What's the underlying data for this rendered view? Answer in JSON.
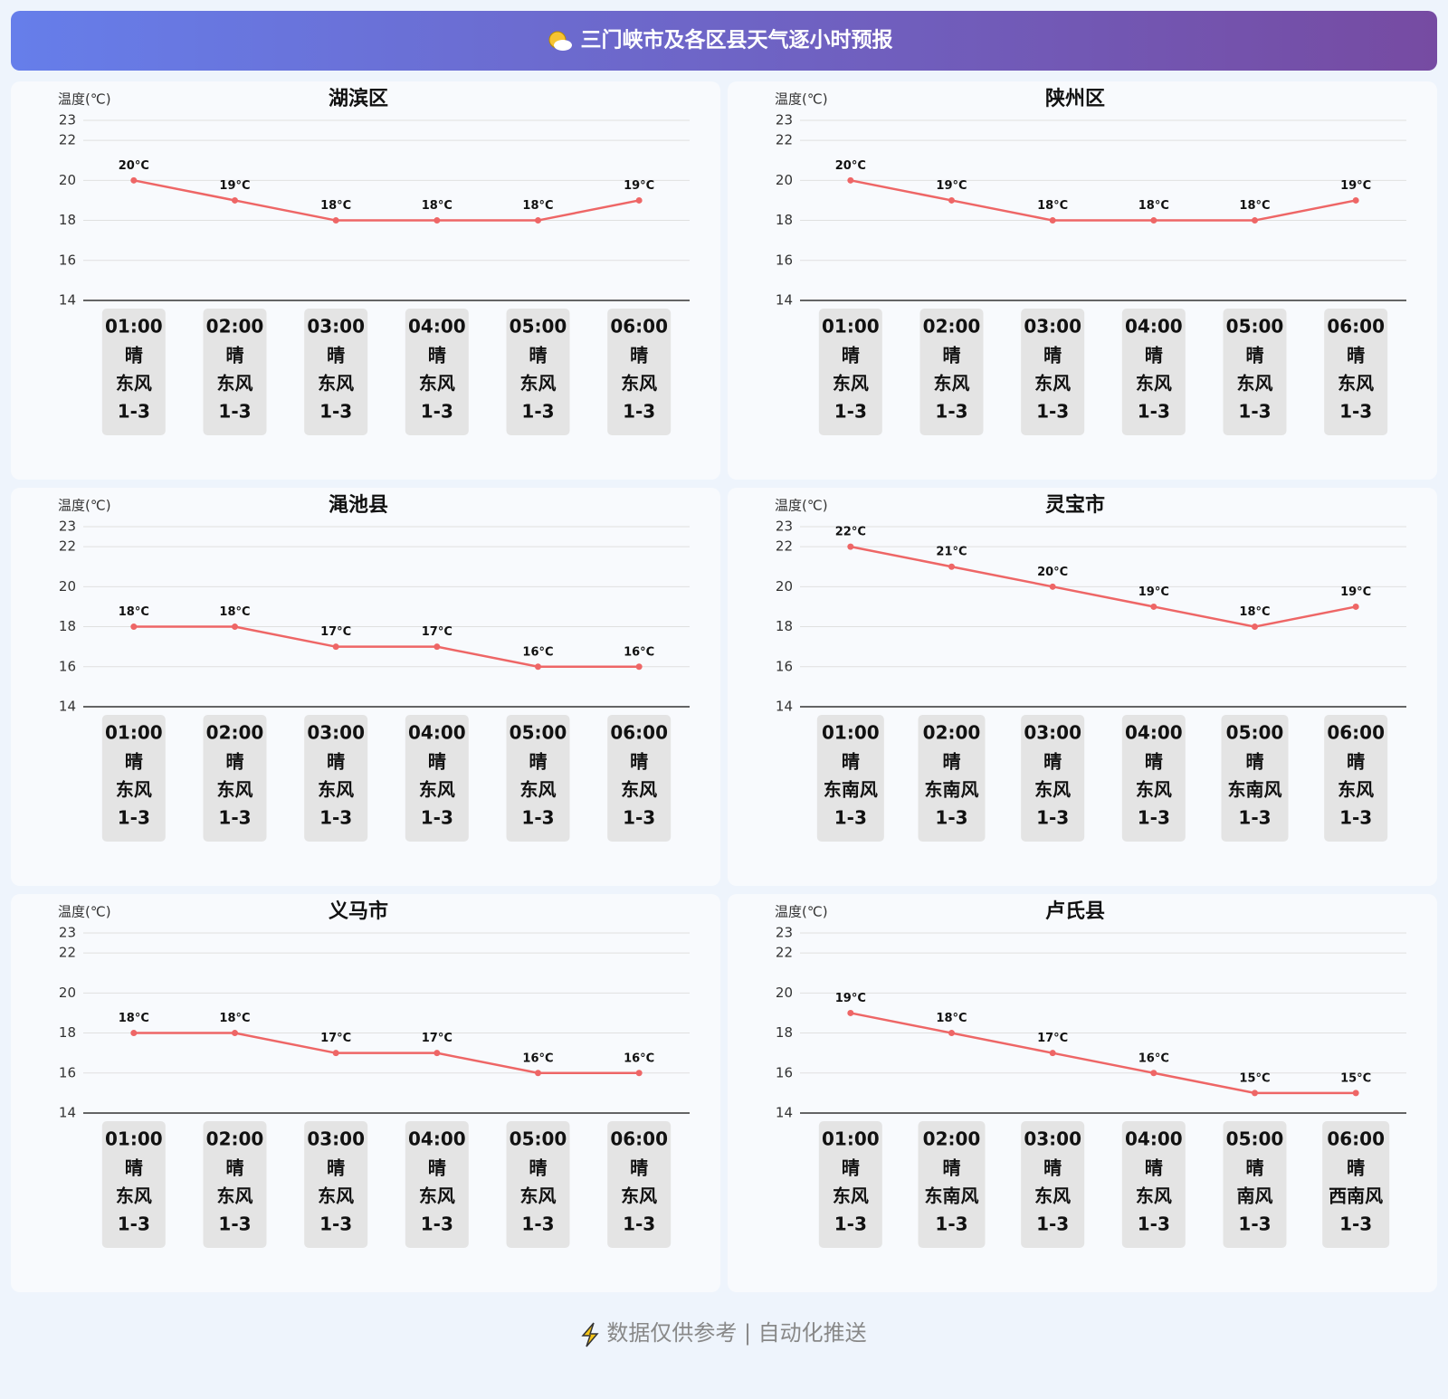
{
  "header": {
    "title": "三门峡市及各区县天气逐小时预报"
  },
  "footer": {
    "text": "数据仅供参考 | 自动化推送"
  },
  "chart_data": [
    {
      "type": "line",
      "title": "湖滨区",
      "ylabel": "温度(℃)",
      "color": "#ee6666",
      "grid": true,
      "categories": [
        "01:00",
        "02:00",
        "03:00",
        "04:00",
        "05:00",
        "06:00"
      ],
      "values": [
        20,
        19,
        18,
        18,
        18,
        19
      ],
      "value_labels": [
        "20°C",
        "19°C",
        "18°C",
        "18°C",
        "18°C",
        "19°C"
      ],
      "weather": [
        "晴",
        "晴",
        "晴",
        "晴",
        "晴",
        "晴"
      ],
      "wind": [
        "东风",
        "东风",
        "东风",
        "东风",
        "东风",
        "东风"
      ],
      "wind_level": [
        "1-3",
        "1-3",
        "1-3",
        "1-3",
        "1-3",
        "1-3"
      ],
      "ylim": [
        14,
        23
      ],
      "yticks": [
        14,
        16,
        18,
        20,
        22,
        23
      ]
    },
    {
      "type": "line",
      "title": "陕州区",
      "ylabel": "温度(℃)",
      "color": "#ee6666",
      "grid": true,
      "categories": [
        "01:00",
        "02:00",
        "03:00",
        "04:00",
        "05:00",
        "06:00"
      ],
      "values": [
        20,
        19,
        18,
        18,
        18,
        19
      ],
      "value_labels": [
        "20°C",
        "19°C",
        "18°C",
        "18°C",
        "18°C",
        "19°C"
      ],
      "weather": [
        "晴",
        "晴",
        "晴",
        "晴",
        "晴",
        "晴"
      ],
      "wind": [
        "东风",
        "东风",
        "东风",
        "东风",
        "东风",
        "东风"
      ],
      "wind_level": [
        "1-3",
        "1-3",
        "1-3",
        "1-3",
        "1-3",
        "1-3"
      ],
      "ylim": [
        14,
        23
      ],
      "yticks": [
        14,
        16,
        18,
        20,
        22,
        23
      ]
    },
    {
      "type": "line",
      "title": "渑池县",
      "ylabel": "温度(℃)",
      "color": "#ee6666",
      "grid": true,
      "categories": [
        "01:00",
        "02:00",
        "03:00",
        "04:00",
        "05:00",
        "06:00"
      ],
      "values": [
        18,
        18,
        17,
        17,
        16,
        16
      ],
      "value_labels": [
        "18°C",
        "18°C",
        "17°C",
        "17°C",
        "16°C",
        "16°C"
      ],
      "weather": [
        "晴",
        "晴",
        "晴",
        "晴",
        "晴",
        "晴"
      ],
      "wind": [
        "东风",
        "东风",
        "东风",
        "东风",
        "东风",
        "东风"
      ],
      "wind_level": [
        "1-3",
        "1-3",
        "1-3",
        "1-3",
        "1-3",
        "1-3"
      ],
      "ylim": [
        14,
        23
      ],
      "yticks": [
        14,
        16,
        18,
        20,
        22,
        23
      ]
    },
    {
      "type": "line",
      "title": "灵宝市",
      "ylabel": "温度(℃)",
      "color": "#ee6666",
      "grid": true,
      "categories": [
        "01:00",
        "02:00",
        "03:00",
        "04:00",
        "05:00",
        "06:00"
      ],
      "values": [
        22,
        21,
        20,
        19,
        18,
        19
      ],
      "value_labels": [
        "22°C",
        "21°C",
        "20°C",
        "19°C",
        "18°C",
        "19°C"
      ],
      "weather": [
        "晴",
        "晴",
        "晴",
        "晴",
        "晴",
        "晴"
      ],
      "wind": [
        "东南风",
        "东南风",
        "东风",
        "东风",
        "东南风",
        "东风"
      ],
      "wind_level": [
        "1-3",
        "1-3",
        "1-3",
        "1-3",
        "1-3",
        "1-3"
      ],
      "ylim": [
        14,
        23
      ],
      "yticks": [
        14,
        16,
        18,
        20,
        22,
        23
      ]
    },
    {
      "type": "line",
      "title": "义马市",
      "ylabel": "温度(℃)",
      "color": "#ee6666",
      "grid": true,
      "categories": [
        "01:00",
        "02:00",
        "03:00",
        "04:00",
        "05:00",
        "06:00"
      ],
      "values": [
        18,
        18,
        17,
        17,
        16,
        16
      ],
      "value_labels": [
        "18°C",
        "18°C",
        "17°C",
        "17°C",
        "16°C",
        "16°C"
      ],
      "weather": [
        "晴",
        "晴",
        "晴",
        "晴",
        "晴",
        "晴"
      ],
      "wind": [
        "东风",
        "东风",
        "东风",
        "东风",
        "东风",
        "东风"
      ],
      "wind_level": [
        "1-3",
        "1-3",
        "1-3",
        "1-3",
        "1-3",
        "1-3"
      ],
      "ylim": [
        14,
        23
      ],
      "yticks": [
        14,
        16,
        18,
        20,
        22,
        23
      ]
    },
    {
      "type": "line",
      "title": "卢氏县",
      "ylabel": "温度(℃)",
      "color": "#ee6666",
      "grid": true,
      "categories": [
        "01:00",
        "02:00",
        "03:00",
        "04:00",
        "05:00",
        "06:00"
      ],
      "values": [
        19,
        18,
        17,
        16,
        15,
        15
      ],
      "value_labels": [
        "19°C",
        "18°C",
        "17°C",
        "16°C",
        "15°C",
        "15°C"
      ],
      "weather": [
        "晴",
        "晴",
        "晴",
        "晴",
        "晴",
        "晴"
      ],
      "wind": [
        "东风",
        "东南风",
        "东风",
        "东风",
        "南风",
        "西南风"
      ],
      "wind_level": [
        "1-3",
        "1-3",
        "1-3",
        "1-3",
        "1-3",
        "1-3"
      ],
      "ylim": [
        14,
        23
      ],
      "yticks": [
        14,
        16,
        18,
        20,
        22,
        23
      ]
    }
  ]
}
